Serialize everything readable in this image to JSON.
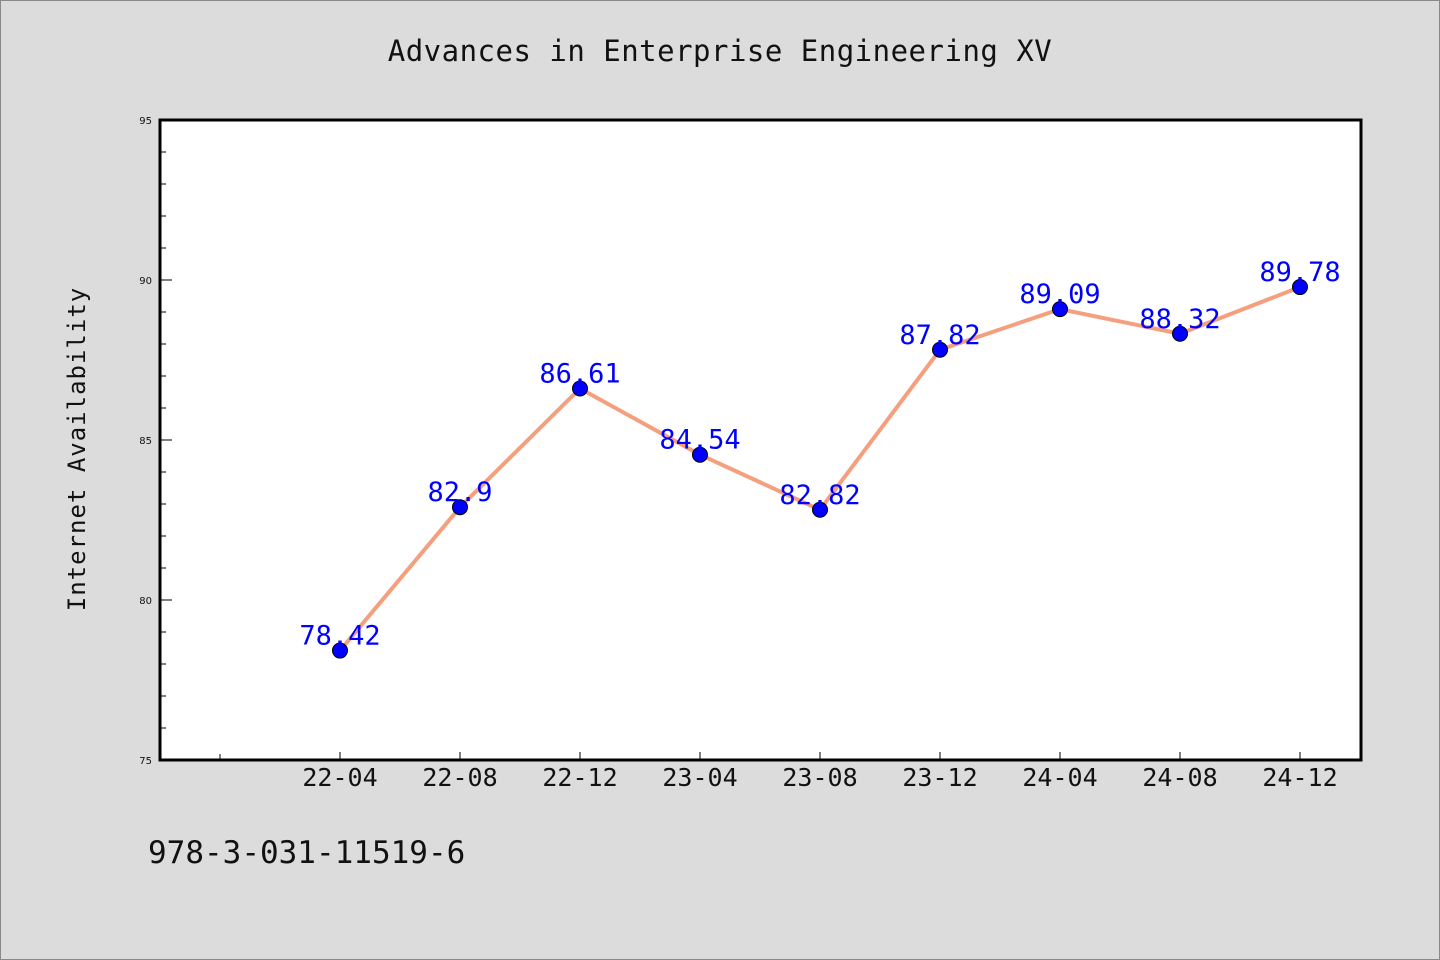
{
  "title": "Advances in Enterprise Engineering XV",
  "footer_text": "978-3-031-11519-6",
  "colors": {
    "background": "#dcdcdc",
    "plot_background": "#ffffff",
    "line": "#f4a07e",
    "marker": "#0000ff",
    "data_label": "#0000ff"
  },
  "chart_data": {
    "type": "line",
    "title": "Advances in Enterprise Engineering XV",
    "xlabel": "",
    "ylabel": "Internet Availability",
    "x": [
      "22-04",
      "22-08",
      "22-12",
      "23-04",
      "23-08",
      "23-12",
      "24-04",
      "24-08",
      "24-12"
    ],
    "series": [
      {
        "values": [
          78.42,
          82.9,
          86.61,
          84.54,
          82.82,
          87.82,
          89.09,
          88.32,
          89.78
        ]
      }
    ],
    "data_labels": [
      "78.42",
      "82.9",
      "86.61",
      "84.54",
      "82.82",
      "87.82",
      "89.09",
      "88.32",
      "89.78"
    ],
    "ylim": [
      75,
      95
    ],
    "yticks": [
      75,
      80,
      85,
      90,
      95
    ],
    "grid": false,
    "legend": "none",
    "markers": "circle"
  }
}
